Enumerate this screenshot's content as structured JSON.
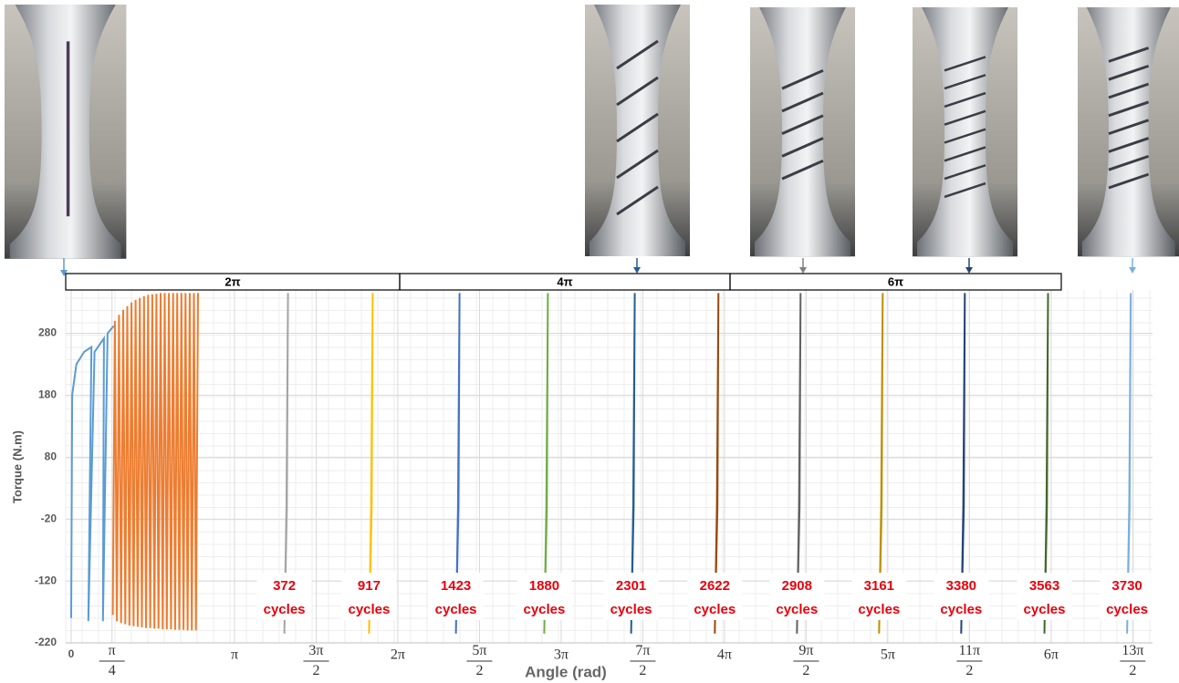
{
  "chart_data": {
    "type": "line",
    "x_label": "Angle (rad)",
    "y_label": "Torque (N.m)",
    "xlim": [
      0,
      20.8
    ],
    "ylim": [
      -220,
      350
    ],
    "yticks": [
      -220,
      -120,
      -20,
      80,
      180,
      280
    ],
    "xticks": [
      0,
      {
        "value": 0.785,
        "label": "π/4"
      },
      {
        "value": 3.1416,
        "label": "π"
      },
      {
        "value": 4.7124,
        "label": "3π/2"
      },
      {
        "value": 6.2832,
        "label": "2π"
      },
      {
        "value": 7.854,
        "label": "5π/2"
      },
      {
        "value": 9.4248,
        "label": "3π"
      },
      {
        "value": 10.9956,
        "label": "7π/2"
      },
      {
        "value": 12.5664,
        "label": "4π"
      },
      {
        "value": 14.1372,
        "label": "9π/2"
      },
      {
        "value": 15.708,
        "label": "5π"
      },
      {
        "value": 17.2788,
        "label": "11π/2"
      },
      {
        "value": 18.8496,
        "label": "6π"
      },
      {
        "value": 20.4204,
        "label": "13π/2"
      }
    ],
    "grid": true,
    "bracket_labels": [
      "2π",
      "4π",
      "6π"
    ],
    "series": [
      {
        "color": "#5b9bd5",
        "x": [
          0,
          0.02,
          0.1,
          0.25,
          0.39,
          0.33,
          0.45,
          0.63,
          0.61,
          0.7,
          0.82
        ],
        "values": [
          -180,
          180,
          230,
          250,
          258,
          -185,
          250,
          272,
          -185,
          280,
          292
        ]
      },
      {
        "color": "#ed7d31",
        "x": [
          0.8,
          0.84,
          0.88,
          0.92,
          0.96,
          1.0,
          1.04,
          1.08,
          1.12,
          1.16,
          1.2,
          1.24,
          1.28,
          1.32,
          1.36,
          1.4,
          1.44,
          1.48,
          1.52,
          1.56,
          1.6,
          1.64,
          1.68,
          1.72,
          1.76,
          1.8,
          1.84,
          1.88,
          1.92,
          1.96,
          2.0,
          2.04,
          2.08,
          2.12,
          2.16,
          2.2,
          2.24,
          2.28,
          2.32,
          2.36,
          2.4,
          2.44
        ],
        "values": [
          -175,
          300,
          -185,
          310,
          -188,
          318,
          -190,
          324,
          -192,
          330,
          -193,
          334,
          -194,
          337,
          -195,
          340,
          -196,
          342,
          -196,
          343,
          -197,
          344,
          -197,
          345,
          -198,
          345,
          -198,
          345,
          -198,
          345,
          -199,
          345,
          -199,
          345,
          -199,
          345,
          -200,
          345,
          -200,
          345,
          -200,
          345
        ]
      },
      {
        "color": "#a5a5a5",
        "x": [
          4.1,
          4.14,
          4.17,
          4.15,
          4.1
        ],
        "values": [
          -205,
          0,
          345,
          0,
          -205
        ],
        "label": [
          "372",
          "cycles"
        ]
      },
      {
        "color": "#ffc000",
        "x": [
          5.73,
          5.77,
          5.8,
          5.78,
          5.73
        ],
        "values": [
          -205,
          0,
          345,
          0,
          -205
        ],
        "label": [
          "917",
          "cycles"
        ]
      },
      {
        "color": "#4472c4",
        "x": [
          7.4,
          7.44,
          7.47,
          7.45,
          7.4
        ],
        "values": [
          -205,
          0,
          345,
          0,
          -205
        ],
        "label": [
          "1423",
          "cycles"
        ]
      },
      {
        "color": "#70ad47",
        "x": [
          9.1,
          9.14,
          9.17,
          9.15,
          9.1
        ],
        "values": [
          -205,
          0,
          345,
          0,
          -205
        ],
        "label": [
          "1880",
          "cycles"
        ]
      },
      {
        "color": "#255e91",
        "x": [
          10.77,
          10.81,
          10.84,
          10.82,
          10.77
        ],
        "values": [
          -205,
          0,
          345,
          0,
          -205
        ],
        "label": [
          "2301",
          "cycles"
        ]
      },
      {
        "color": "#9e480e",
        "x": [
          12.38,
          12.42,
          12.45,
          12.43,
          12.38
        ],
        "values": [
          -205,
          0,
          345,
          0,
          -205
        ],
        "label": [
          "2622",
          "cycles"
        ]
      },
      {
        "color": "#636363",
        "x": [
          13.96,
          14.0,
          14.03,
          14.01,
          13.96
        ],
        "values": [
          -205,
          0,
          345,
          0,
          -205
        ],
        "label": [
          "2908",
          "cycles"
        ]
      },
      {
        "color": "#bf9000",
        "x": [
          15.54,
          15.58,
          15.61,
          15.59,
          15.54
        ],
        "values": [
          -205,
          0,
          345,
          0,
          -205
        ],
        "label": [
          "3161",
          "cycles"
        ]
      },
      {
        "color": "#264478",
        "x": [
          17.12,
          17.16,
          17.19,
          17.17,
          17.12
        ],
        "values": [
          -205,
          0,
          345,
          0,
          -205
        ],
        "label": [
          "3380",
          "cycles"
        ]
      },
      {
        "color": "#43682b",
        "x": [
          18.72,
          18.76,
          18.79,
          18.77,
          18.72
        ],
        "values": [
          -205,
          0,
          345,
          0,
          -205
        ],
        "label": [
          "3563",
          "cycles"
        ]
      },
      {
        "color": "#7cafdd",
        "x": [
          20.31,
          20.35,
          20.38,
          20.36,
          20.31
        ],
        "values": [
          -205,
          0,
          345,
          0,
          -205
        ],
        "label": [
          "3730",
          "cycles"
        ]
      }
    ]
  }
}
